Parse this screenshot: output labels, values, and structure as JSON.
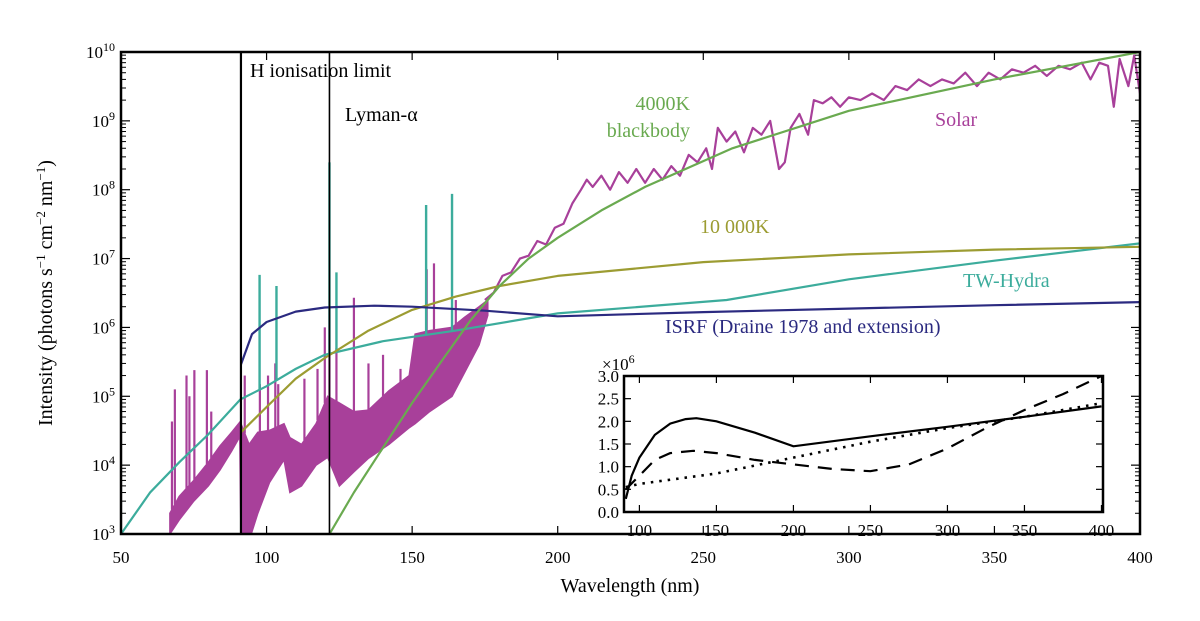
{
  "chart_data": [
    {
      "type": "line",
      "xlabel": "Wavelength (nm)",
      "ylabel": "Intensity (photons s^{−1} cm^{−2} nm^{−1})",
      "xlim": [
        50,
        400
      ],
      "ylim": [
        1000,
        10000000000
      ],
      "yscale": "log",
      "grid": false,
      "x_ticks": [
        50,
        100,
        150,
        200,
        250,
        300,
        350,
        400
      ],
      "x_tick_labels": [
        "50",
        "100",
        "150",
        "200",
        "250",
        "300",
        "350",
        "400"
      ],
      "y_ticks": [
        1000.0,
        10000.0,
        100000.0,
        1000000.0,
        10000000.0,
        100000000.0,
        1000000000.0,
        10000000000.0
      ],
      "y_tick_labels": [
        "10^3",
        "10^4",
        "10^5",
        "10^6",
        "10^7",
        "10^8",
        "10^9",
        "10^10"
      ],
      "vertical_lines": [
        {
          "x": 91.2,
          "label": "H ionisation limit",
          "color": "#000000"
        },
        {
          "x": 121.6,
          "label": "Lyman-α",
          "color": "#000000"
        }
      ],
      "series": [
        {
          "name": "Solar",
          "color": "#a8409a",
          "band": [
            [
              66.8,
              1000.0,
              2000.0
            ],
            [
              70,
              1600.0,
              3500.0
            ],
            [
              75,
              3000.0,
              6000.0
            ],
            [
              80,
              5000.0,
              11000.0
            ],
            [
              84,
              8500.0,
              19000.0
            ],
            [
              88,
              16000.0,
              30000.0
            ],
            [
              90.8,
              26000.0,
              42000.0
            ],
            [
              91.2,
              800,
              40000.0
            ],
            [
              94,
              800,
              20000.0
            ],
            [
              97,
              2000.0,
              30000.0
            ],
            [
              101,
              5600.0,
              32000.0
            ],
            [
              106,
              12000.0,
              40000.0
            ],
            [
              108,
              4000.0,
              25000.0
            ],
            [
              112,
              5000.0,
              20000.0
            ],
            [
              117,
              10000.0,
              40000.0
            ],
            [
              121,
              13000.0,
              100000.0
            ],
            [
              125,
              5000.0,
              80000.0
            ],
            [
              130,
              8000.0,
              60000.0
            ],
            [
              135,
              12600.0,
              63000.0
            ],
            [
              142,
              20000.0,
              120000.0
            ],
            [
              149,
              35000.0,
              200000.0
            ],
            [
              151,
              40000.0,
              800000.0
            ],
            [
              156,
              60000.0,
              900000.0
            ],
            [
              163.7,
              100000.0,
              1000000.0
            ],
            [
              168,
              220000.0,
              1400000.0
            ],
            [
              173,
              560000.0,
              2000000.0
            ],
            [
              176,
              1500000.0,
              2500000.0
            ]
          ],
          "emission_lines": [
            [
              67.5,
              43000.0
            ],
            [
              68.5,
              126000.0
            ],
            [
              72.5,
              200000.0
            ],
            [
              73.5,
              100000.0
            ],
            [
              75.2,
              240000.0
            ],
            [
              79.5,
              240000.0
            ],
            [
              81,
              60000.0
            ],
            [
              92.5,
              200000.0
            ],
            [
              97.7,
              150000.0
            ],
            [
              100.5,
              200000.0
            ],
            [
              103,
              300000.0
            ],
            [
              104,
              150000.0
            ],
            [
              113,
              180000.0
            ],
            [
              117.5,
              250000.0
            ],
            [
              120,
              1000000.0
            ],
            [
              121.6,
              2000000.0
            ],
            [
              124,
              500000.0
            ],
            [
              130,
              2700000.0
            ],
            [
              135,
              300000.0
            ],
            [
              140,
              400000.0
            ],
            [
              146,
              250000.0
            ],
            [
              155,
              7000000.0
            ],
            [
              157.5,
              8500000.0
            ],
            [
              165,
              2500000.0
            ]
          ],
          "x": [
            175,
            178,
            181,
            184,
            187,
            190,
            193,
            196,
            199,
            202,
            205,
            208,
            210,
            212,
            215,
            218,
            221,
            224,
            227,
            230,
            233,
            236,
            239,
            242,
            245,
            248,
            251,
            253,
            255,
            258,
            261,
            264,
            267,
            270,
            273,
            276,
            278,
            280,
            283,
            286,
            288,
            291,
            294,
            297,
            300,
            304,
            308,
            312,
            316,
            320,
            324,
            328,
            332,
            336,
            340,
            344,
            348,
            352,
            356,
            360,
            364,
            368,
            372,
            376,
            380,
            383,
            386,
            389,
            391,
            393,
            396,
            398,
            400
          ],
          "y": [
            2500000.0,
            3200000.0,
            5600000.0,
            6300000.0,
            10000000.0,
            11000000.0,
            18000000.0,
            16000000.0,
            28000000.0,
            32000000.0,
            63000000.0,
            100000000.0,
            140000000.0,
            110000000.0,
            160000000.0,
            100000000.0,
            180000000.0,
            126000000.0,
            200000000.0,
            126000000.0,
            200000000.0,
            140000000.0,
            220000000.0,
            160000000.0,
            320000000.0,
            250000000.0,
            400000000.0,
            200000000.0,
            790000000.0,
            500000000.0,
            700000000.0,
            350000000.0,
            790000000.0,
            630000000.0,
            1000000000.0,
            200000000.0,
            250000000.0,
            790000000.0,
            1260000000.0,
            630000000.0,
            2000000000.0,
            1800000000.0,
            2200000000.0,
            1600000000.0,
            2200000000.0,
            2000000000.0,
            2500000000.0,
            2000000000.0,
            3200000000.0,
            2800000000.0,
            4000000000.0,
            3200000000.0,
            4000000000.0,
            3500000000.0,
            5000000000.0,
            3200000000.0,
            5000000000.0,
            4000000000.0,
            5600000000.0,
            5000000000.0,
            6300000000.0,
            4500000000.0,
            6300000000.0,
            5600000000.0,
            7000000000.0,
            4000000000.0,
            7000000000.0,
            6300000000.0,
            1600000000.0,
            7900000000.0,
            3200000000.0,
            8900000000.0,
            2500000000.0
          ]
        },
        {
          "name": "TW-Hydra",
          "color": "#3cac9c",
          "x": [
            50,
            60,
            70,
            80,
            91,
            100,
            110,
            120,
            140,
            165,
            200,
            258,
            300,
            350,
            400
          ],
          "y": [
            1000.0,
            4000.0,
            11000.0,
            28000.0,
            90000.0,
            140000.0,
            250000.0,
            400000.0,
            630000.0,
            900000.0,
            1600000.0,
            2500000.0,
            5000000.0,
            9300000.0,
            16600000.0
          ],
          "emission_lines": [
            [
              97.6,
              5800000.0
            ],
            [
              103.4,
              4000000.0
            ],
            [
              121.6,
              250000000.0
            ],
            [
              124,
              6300000.0
            ],
            [
              154.8,
              60000000.0
            ],
            [
              163.7,
              87000000.0
            ]
          ]
        },
        {
          "name": "10 000K",
          "color": "#9c9c32",
          "x": [
            91.2,
            100,
            110,
            120,
            135,
            150,
            165,
            180,
            200,
            250,
            300,
            350,
            400
          ],
          "y": [
            30000.0,
            70000.0,
            180000.0,
            360000.0,
            900000.0,
            1800000.0,
            2800000.0,
            4000000.0,
            5600000.0,
            8900000.0,
            11500000.0,
            13500000.0,
            14800000.0
          ]
        },
        {
          "name": "ISRF (Draine 1978 and extension)",
          "color": "#2b2a80",
          "x": [
            91.2,
            95,
            100,
            110,
            120,
            137,
            150,
            175,
            200,
            250,
            300,
            350,
            400
          ],
          "y": [
            290000.0,
            800000.0,
            1200000.0,
            1700000.0,
            1950000.0,
            2070000.0,
            2000000.0,
            1750000.0,
            1450000.0,
            1670000.0,
            1880000.0,
            2100000.0,
            2330000.0
          ]
        },
        {
          "name": "4000K blackbody",
          "color": "#6aaa50",
          "x": [
            121.6,
            130,
            140,
            150,
            160,
            170,
            180,
            190,
            200,
            215,
            230,
            260,
            300,
            350,
            400
          ],
          "y": [
            1000.0,
            4000.0,
            18000.0,
            80000.0,
            320000.0,
            1260000.0,
            4000000.0,
            10000000.0,
            20000000.0,
            50000000.0,
            110000000.0,
            400000000.0,
            1400000000.0,
            4000000000.0,
            10000000000.0
          ]
        }
      ]
    },
    {
      "type": "line",
      "xlim": [
        90,
        401
      ],
      "ylim": [
        0,
        3.0
      ],
      "multiplier": "×10^6",
      "grid": false,
      "x_ticks": [
        100,
        150,
        200,
        250,
        300,
        350,
        400
      ],
      "x_tick_labels": [
        "100",
        "150",
        "200",
        "250",
        "300",
        "350",
        "400"
      ],
      "y_ticks": [
        0,
        0.5,
        1,
        1.5,
        2,
        2.5,
        3
      ],
      "y_tick_labels": [
        "0.0",
        "0.5",
        "1.0",
        "1.5",
        "2.0",
        "2.5",
        "3.0"
      ],
      "series": [
        {
          "style": "solid",
          "color": "#000000",
          "x": [
            91.2,
            95,
            100,
            110,
            120,
            130,
            137,
            150,
            175,
            200,
            250,
            300,
            350,
            400
          ],
          "y": [
            0.29,
            0.8,
            1.2,
            1.7,
            1.95,
            2.05,
            2.07,
            2.0,
            1.75,
            1.45,
            1.67,
            1.88,
            2.1,
            2.33
          ]
        },
        {
          "style": "dashed",
          "color": "#000000",
          "x": [
            91.2,
            100,
            110,
            120,
            135,
            150,
            175,
            200,
            225,
            250,
            275,
            300,
            325,
            350,
            375,
            400
          ],
          "y": [
            0.5,
            0.8,
            1.15,
            1.3,
            1.35,
            1.3,
            1.15,
            1.05,
            0.95,
            0.9,
            1.05,
            1.4,
            1.85,
            2.25,
            2.6,
            3.0
          ]
        },
        {
          "style": "dotted",
          "color": "#000000",
          "x": [
            91.2,
            100,
            150,
            200,
            250,
            300,
            350,
            400
          ],
          "y": [
            0.55,
            0.62,
            0.85,
            1.2,
            1.55,
            1.85,
            2.1,
            2.4
          ]
        }
      ]
    }
  ]
}
